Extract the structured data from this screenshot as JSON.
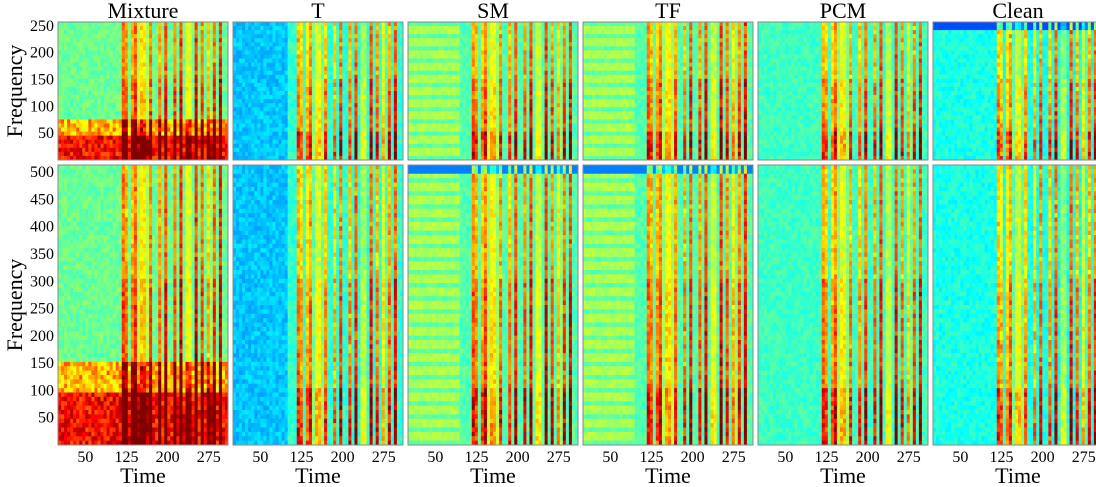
{
  "chart_data": {
    "type": "heatmap",
    "colormap": "jet",
    "panels": [
      "Mixture",
      "T",
      "SM",
      "TF",
      "PCM",
      "Clean"
    ],
    "rows": [
      {
        "ylabel": "Frequency",
        "yticks": [
          50,
          100,
          150,
          200,
          250
        ],
        "ylim": [
          0,
          257
        ]
      },
      {
        "ylabel": "Frequency",
        "yticks": [
          50,
          100,
          150,
          200,
          250,
          300,
          350,
          400,
          450,
          500
        ],
        "ylim": [
          0,
          513
        ]
      }
    ],
    "xlabel": "Time",
    "xticks": [
      50,
      125,
      200,
      275
    ],
    "xlim": [
      0,
      310
    ]
  }
}
